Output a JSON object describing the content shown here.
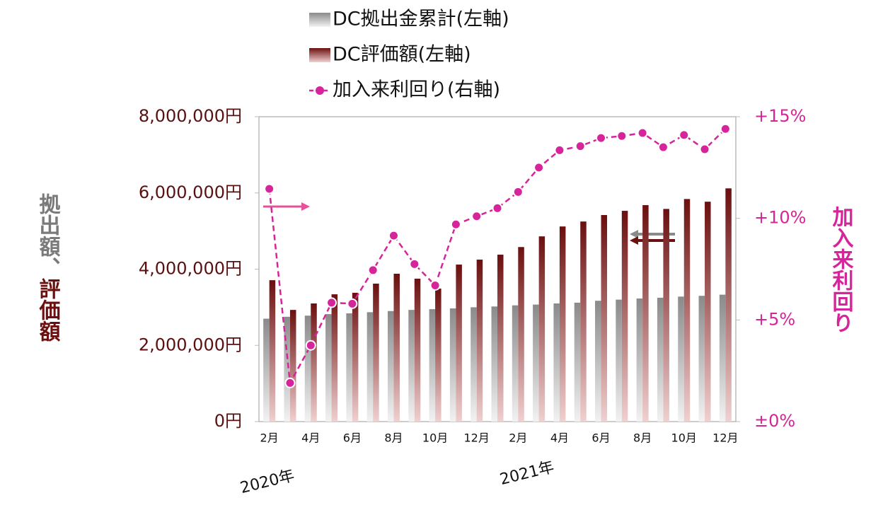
{
  "chart_data": {
    "type": "bar-line",
    "categories": [
      "2月",
      null,
      "4月",
      null,
      "6月",
      null,
      "8月",
      null,
      "10月",
      null,
      "12月",
      null,
      "2月",
      null,
      "4月",
      null,
      "6月",
      null,
      "8月",
      null,
      "10月",
      null,
      "12月"
    ],
    "year_labels": [
      "2020年",
      "2021年"
    ],
    "y_label": [
      "拠出額、",
      "評価額"
    ],
    "y2_label": "加入来利回り",
    "ylim": [
      0,
      8000000
    ],
    "yticks": [
      {
        "value": 0,
        "label": "0円"
      },
      {
        "value": 2000000,
        "label": "2,000,000円"
      },
      {
        "value": 4000000,
        "label": "4,000,000円"
      },
      {
        "value": 6000000,
        "label": "6,000,000円"
      },
      {
        "value": 8000000,
        "label": "8,000,000円"
      }
    ],
    "y2lim": [
      0,
      15
    ],
    "y2ticks": [
      {
        "value": 0,
        "label": "±0%"
      },
      {
        "value": 5,
        "label": "+5%"
      },
      {
        "value": 10,
        "label": "+10%"
      },
      {
        "value": 15,
        "label": "+15%"
      }
    ],
    "legend": "top",
    "series": [
      {
        "name": "DC拠出金累計(左軸)",
        "color": "#8a8a8a",
        "kind": "bar",
        "values": [
          2700000,
          2750000,
          2780000,
          2820000,
          2840000,
          2870000,
          2900000,
          2930000,
          2950000,
          2970000,
          3000000,
          3020000,
          3050000,
          3070000,
          3100000,
          3120000,
          3170000,
          3200000,
          3230000,
          3250000,
          3280000,
          3300000,
          3330000
        ]
      },
      {
        "name": "DC評価額(左軸)",
        "color": "#6b0f0f",
        "kind": "bar",
        "values": [
          3710000,
          2930000,
          3100000,
          3340000,
          3380000,
          3620000,
          3880000,
          3750000,
          3490000,
          4120000,
          4250000,
          4380000,
          4580000,
          4860000,
          5120000,
          5250000,
          5420000,
          5530000,
          5680000,
          5580000,
          5840000,
          5770000,
          6120000
        ]
      },
      {
        "name": "加入来利回り(右軸)",
        "color": "#d6249a",
        "kind": "line",
        "axis": "y2",
        "values": [
          11.45,
          1.9,
          3.75,
          5.85,
          5.8,
          7.45,
          9.15,
          7.75,
          6.7,
          9.7,
          10.1,
          10.5,
          11.3,
          12.5,
          13.35,
          13.55,
          13.95,
          14.05,
          14.2,
          13.5,
          14.1,
          13.4,
          14.4
        ]
      }
    ]
  }
}
